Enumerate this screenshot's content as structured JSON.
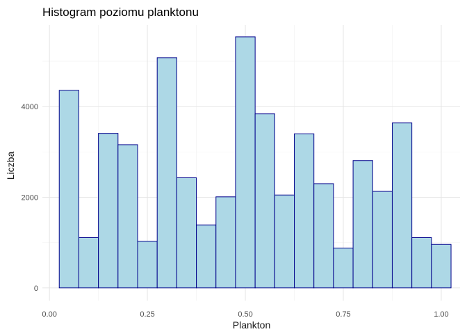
{
  "chart_data": {
    "type": "bar",
    "title": "Histogram poziomu planktonu",
    "xlabel": "Plankton",
    "ylabel": "Liczba",
    "xlim": [
      -0.018,
      1.048
    ],
    "ylim": [
      -280,
      5800
    ],
    "x_ticks": [
      0.0,
      0.25,
      0.5,
      0.75,
      1.0
    ],
    "x_tick_labels": [
      "0.00",
      "0.25",
      "0.50",
      "0.75",
      "1.00"
    ],
    "y_ticks": [
      0,
      2000,
      4000
    ],
    "y_tick_labels": [
      "0",
      "2000",
      "4000"
    ],
    "grid": true,
    "bin_width": 0.05,
    "bin_centers": [
      0.05,
      0.1,
      0.15,
      0.2,
      0.25,
      0.3,
      0.35,
      0.4,
      0.45,
      0.5,
      0.55,
      0.6,
      0.65,
      0.7,
      0.75,
      0.8,
      0.85,
      0.9,
      0.95,
      1.0
    ],
    "values": [
      4360,
      1110,
      3410,
      3160,
      1030,
      5080,
      2430,
      1390,
      2010,
      5540,
      3840,
      2050,
      3400,
      2300,
      880,
      2810,
      2130,
      3640,
      1110,
      960
    ],
    "fill_color": "#add8e6",
    "border_color": "#00008b"
  }
}
